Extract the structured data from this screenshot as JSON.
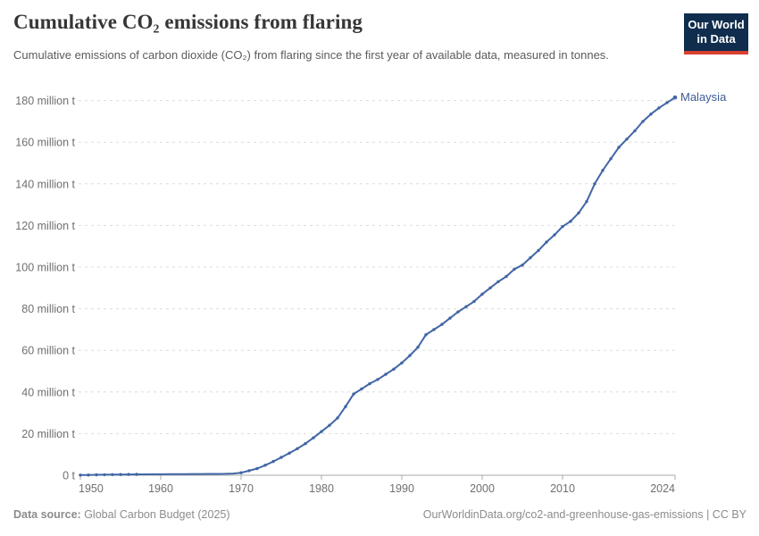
{
  "header": {
    "title": "Cumulative CO₂ emissions from flaring",
    "subtitle": "Cumulative emissions of carbon dioxide (CO₂) from flaring since the first year of available data, measured in tonnes.",
    "logo": {
      "line1": "Our World",
      "line2": "in Data"
    }
  },
  "colors": {
    "line": "#4266a5",
    "series_label": "#3d5c96",
    "grid": "#dcdcdc",
    "axis": "#a9a9a9",
    "tick_text": "#6f6f6f",
    "logo_bg": "#102d4e",
    "logo_red": "#d8402f"
  },
  "chart_data": {
    "type": "line",
    "title": "Cumulative CO₂ emissions from flaring",
    "entity": "Malaysia",
    "unit": "million tonnes",
    "x_range": [
      1950,
      2024
    ],
    "values": [
      0.1,
      0.15,
      0.2,
      0.25,
      0.3,
      0.35,
      0.4,
      0.42,
      0.44,
      0.46,
      0.48,
      0.5,
      0.52,
      0.55,
      0.58,
      0.6,
      0.63,
      0.66,
      0.7,
      0.8,
      1.2,
      2.2,
      3.2,
      4.8,
      6.6,
      8.6,
      10.6,
      12.8,
      15.2,
      18,
      21,
      24,
      27.5,
      33,
      39,
      41.5,
      44,
      46,
      48.5,
      51,
      54,
      57.5,
      61.5,
      67.5,
      70,
      72.5,
      75.5,
      78.5,
      81,
      83.5,
      87,
      90,
      93,
      95.5,
      99,
      101,
      104.5,
      108,
      112,
      115.5,
      119.5,
      122,
      126,
      131.5,
      140,
      146.5,
      152,
      157.5,
      161.5,
      165.5,
      170,
      173.5,
      176.5,
      179,
      181.5
    ],
    "ylim": [
      0,
      186
    ],
    "y_ticks": [
      0,
      20,
      40,
      60,
      80,
      100,
      120,
      140,
      160,
      180
    ],
    "y_tick_labels": [
      "0 t",
      "20 million t",
      "40 million t",
      "60 million t",
      "80 million t",
      "100 million t",
      "120 million t",
      "140 million t",
      "160 million t",
      "180 million t"
    ],
    "x_tick_years": [
      1950,
      1960,
      1970,
      1980,
      1990,
      2000,
      2010,
      2024
    ],
    "x_tick_labels": [
      "1950",
      "1960",
      "1970",
      "1980",
      "1990",
      "2000",
      "2010",
      "2024"
    ],
    "grid": "horizontal-dashed",
    "legend": "series-end-label"
  },
  "footer": {
    "source_label": "Data source:",
    "source_value": " Global Carbon Budget (2025)",
    "link": "OurWorldinData.org/co2-and-greenhouse-gas-emissions | CC BY"
  }
}
